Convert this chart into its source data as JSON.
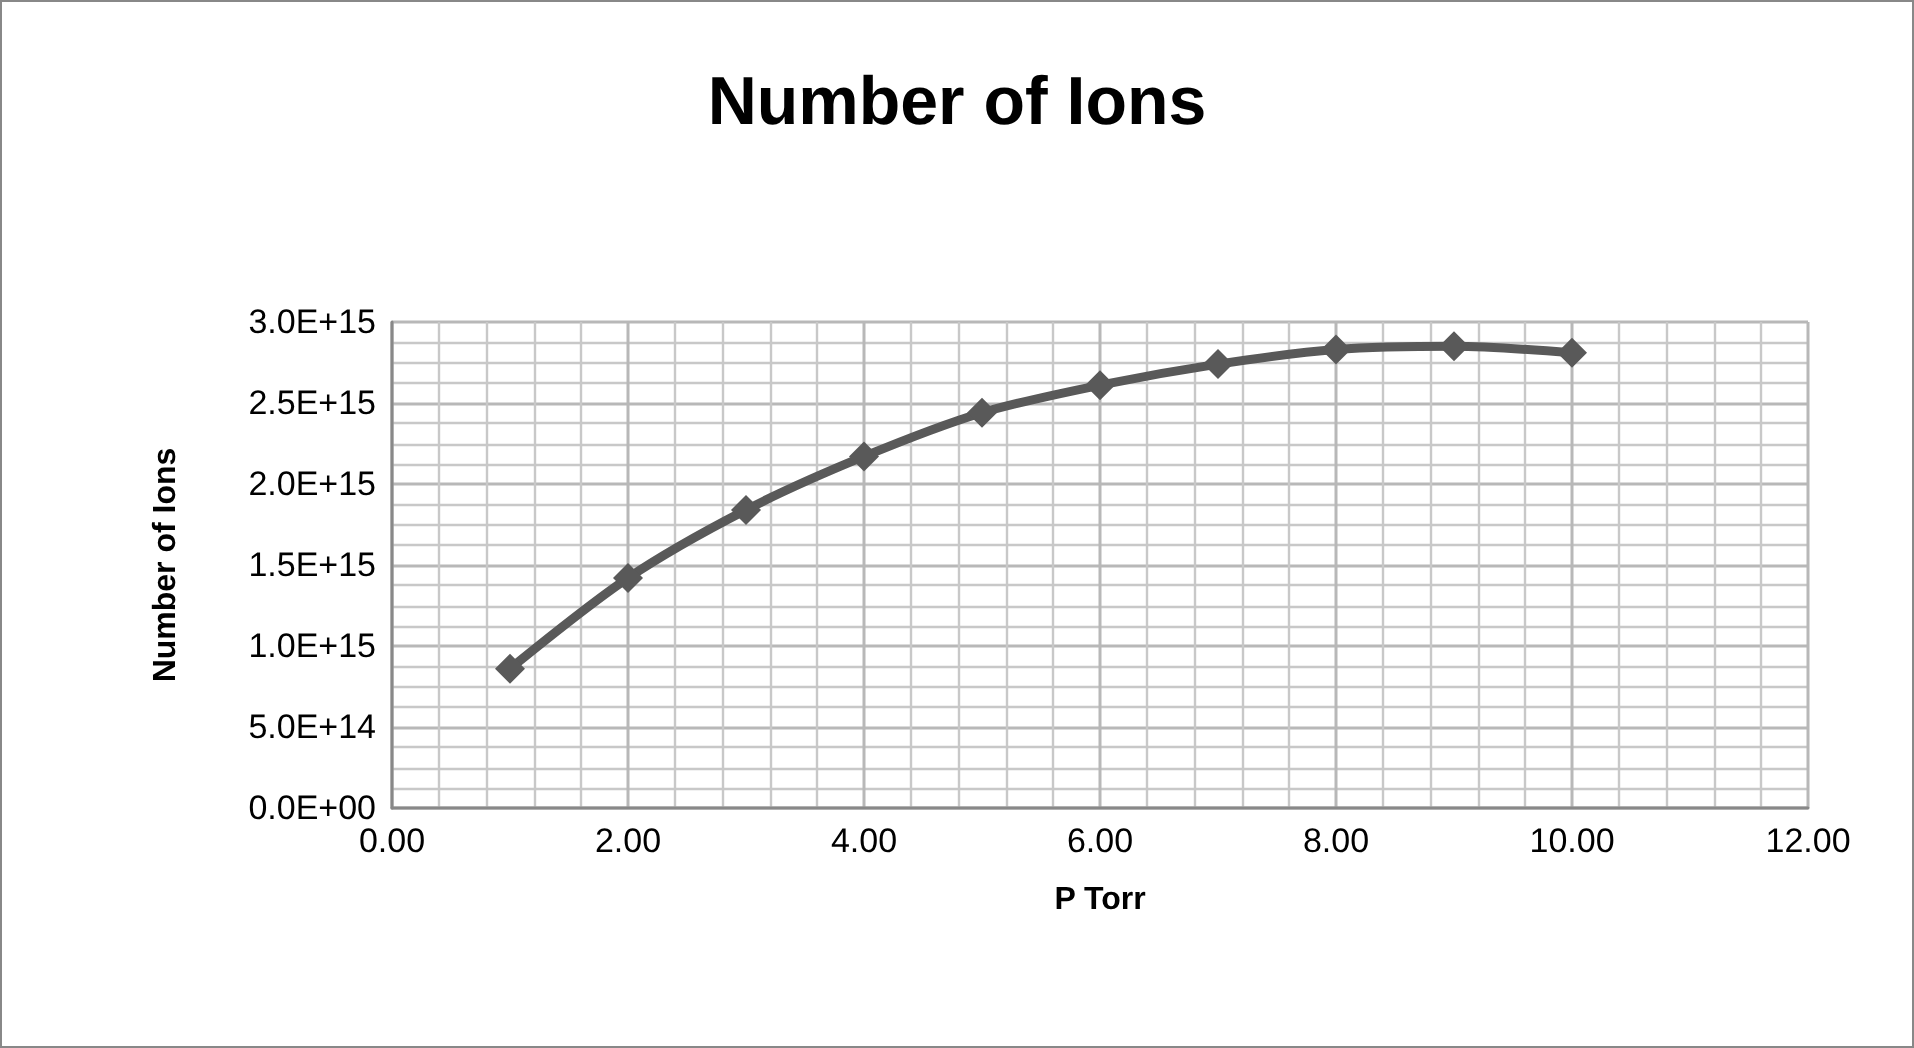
{
  "chart_data": {
    "type": "line",
    "title": "Number of Ions",
    "xlabel": "P Torr",
    "ylabel": "Number of Ions",
    "x": [
      1,
      2,
      3,
      4,
      5,
      6,
      7,
      8,
      9,
      10
    ],
    "series": [
      {
        "color": "#595959",
        "values": [
          860000000000000.0,
          1420000000000000.0,
          1840000000000000.0,
          2170000000000000.0,
          2440000000000000.0,
          2610000000000000.0,
          2740000000000000.0,
          2830000000000000.0,
          2850000000000000.0,
          2810000000000000.0
        ]
      }
    ],
    "xlim": [
      0,
      12
    ],
    "xticks": [
      {
        "value": 0,
        "label": "0.00"
      },
      {
        "value": 2,
        "label": "2.00"
      },
      {
        "value": 4,
        "label": "4.00"
      },
      {
        "value": 6,
        "label": "6.00"
      },
      {
        "value": 8,
        "label": "8.00"
      },
      {
        "value": 10,
        "label": "10.00"
      },
      {
        "value": 12,
        "label": "12.00"
      }
    ],
    "ylim": [
      0,
      3000000000000000.0
    ],
    "yticks": [
      {
        "value": 0,
        "label": "0.0E+00"
      },
      {
        "value": 500000000000000.0,
        "label": "5.0E+14"
      },
      {
        "value": 1000000000000000.0,
        "label": "1.0E+15"
      },
      {
        "value": 1500000000000000.0,
        "label": "1.5E+15"
      },
      {
        "value": 2000000000000000.0,
        "label": "2.0E+15"
      },
      {
        "value": 2500000000000000.0,
        "label": "2.5E+15"
      },
      {
        "value": 3000000000000000.0,
        "label": "3.0E+15"
      }
    ],
    "grid": true,
    "marker": "diamond",
    "line_style": "solid"
  }
}
